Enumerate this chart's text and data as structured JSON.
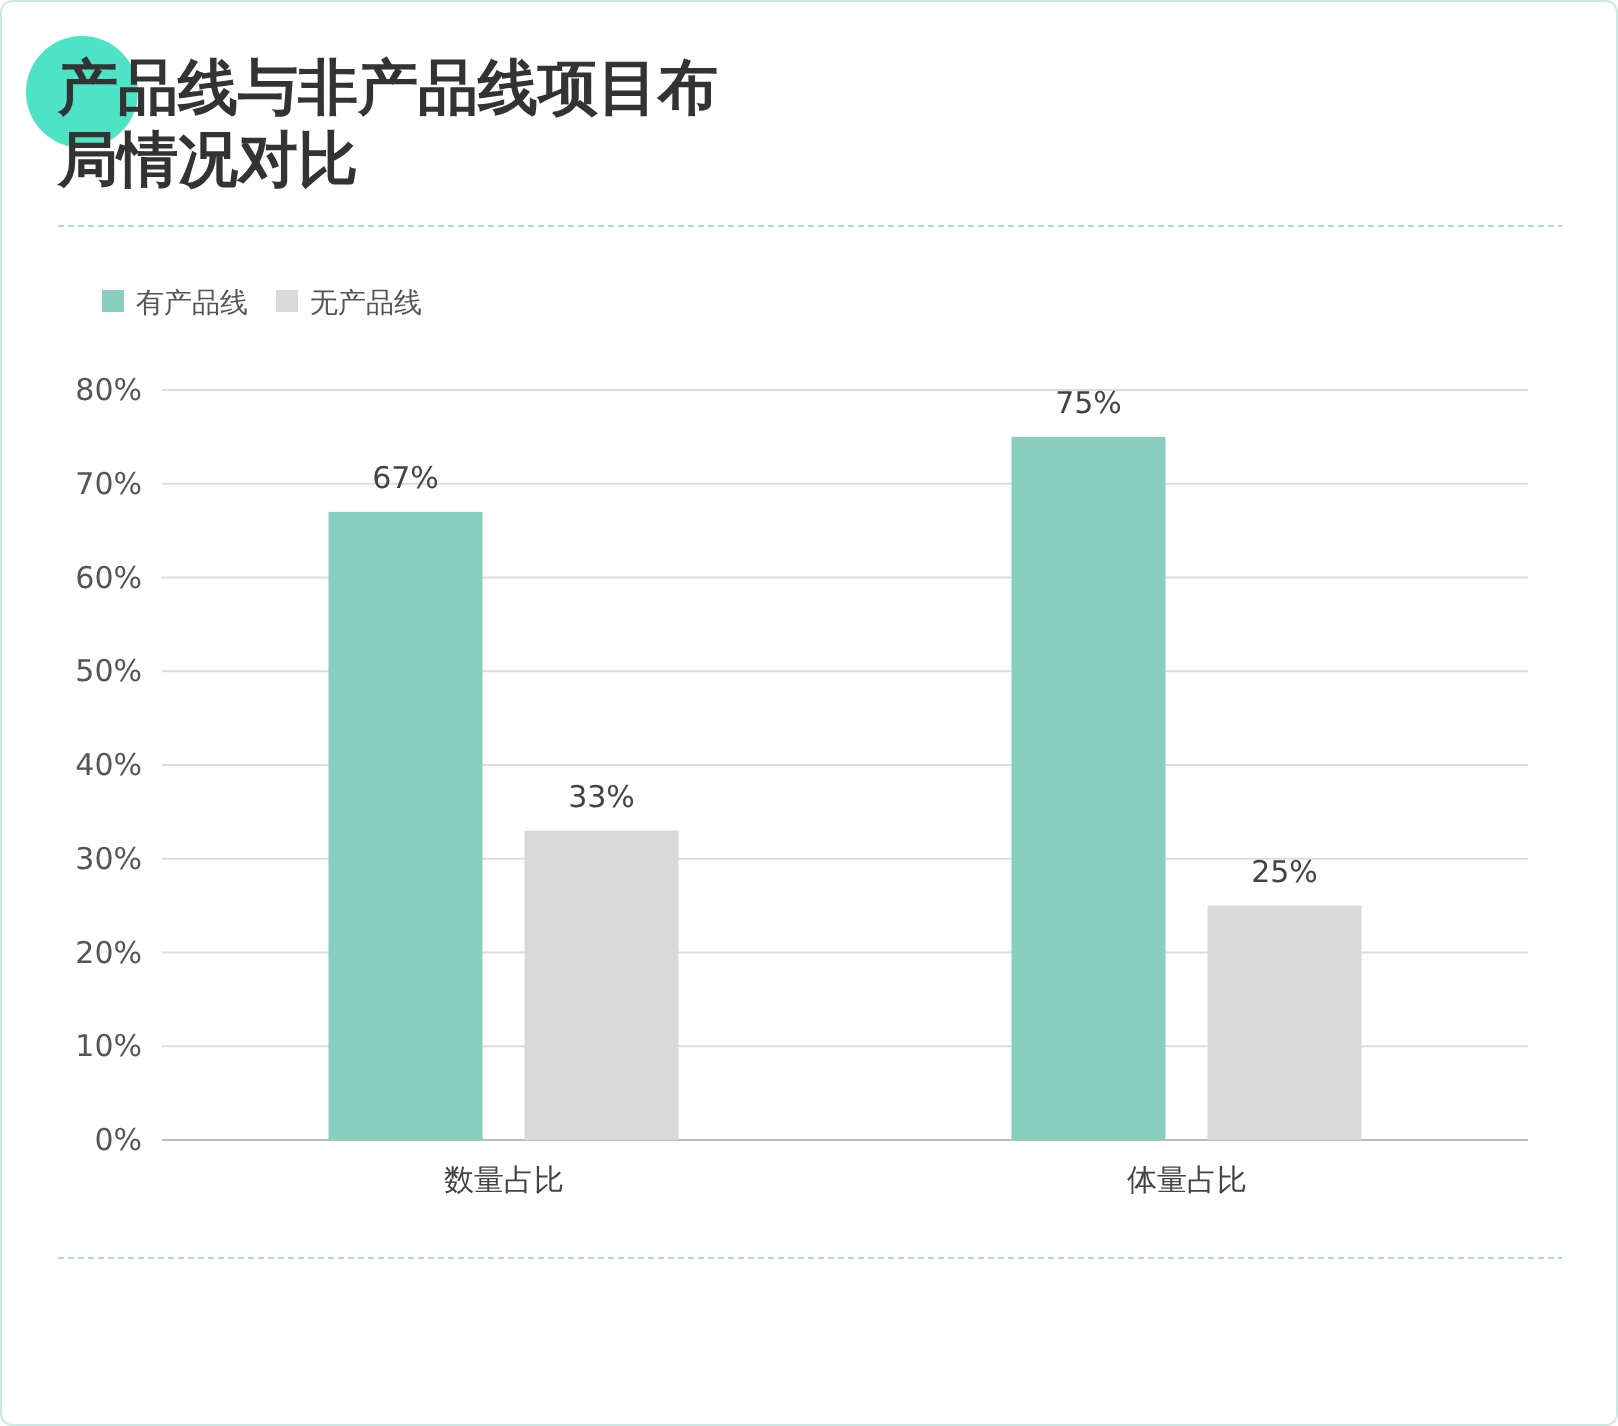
{
  "chart_data": {
    "type": "bar",
    "title": "产品线与非产品线项目布局情况对比",
    "categories": [
      "数量占比",
      "体量占比"
    ],
    "series": [
      {
        "name": "有产品线",
        "color": "#88cfc0",
        "values": [
          67,
          75
        ],
        "value_labels": [
          "67%",
          "75%"
        ]
      },
      {
        "name": "无产品线",
        "color": "#d9d9d9",
        "values": [
          33,
          25
        ],
        "value_labels": [
          "33%",
          "25%"
        ]
      }
    ],
    "ylim": [
      0,
      80
    ],
    "yticks": [
      {
        "value": 0,
        "label": "0%"
      },
      {
        "value": 10,
        "label": "10%"
      },
      {
        "value": 20,
        "label": "20%"
      },
      {
        "value": 30,
        "label": "30%"
      },
      {
        "value": 40,
        "label": "40%"
      },
      {
        "value": 50,
        "label": "50%"
      },
      {
        "value": 60,
        "label": "60%"
      },
      {
        "value": 70,
        "label": "70%"
      },
      {
        "value": 80,
        "label": "80%"
      }
    ],
    "grid": "y",
    "legend": "top left"
  }
}
